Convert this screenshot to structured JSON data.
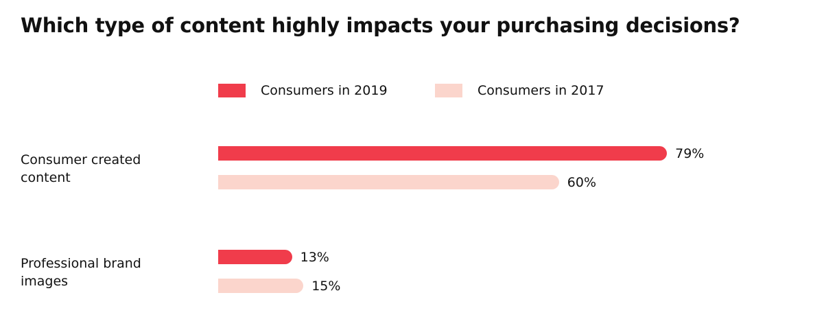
{
  "chart_data": {
    "type": "bar",
    "orientation": "horizontal",
    "title": "Which type of content highly impacts your purchasing decisions?",
    "categories": [
      "Consumer created content",
      "Professional brand images"
    ],
    "series": [
      {
        "name": "Consumers in 2019",
        "color": "#f03c4b",
        "values": [
          79,
          13
        ],
        "value_labels": [
          "79%",
          "13%"
        ]
      },
      {
        "name": "Consumers in 2017",
        "color": "#fbd5cc",
        "values": [
          60,
          15
        ],
        "value_labels": [
          "60%",
          "15%"
        ]
      }
    ]
  }
}
